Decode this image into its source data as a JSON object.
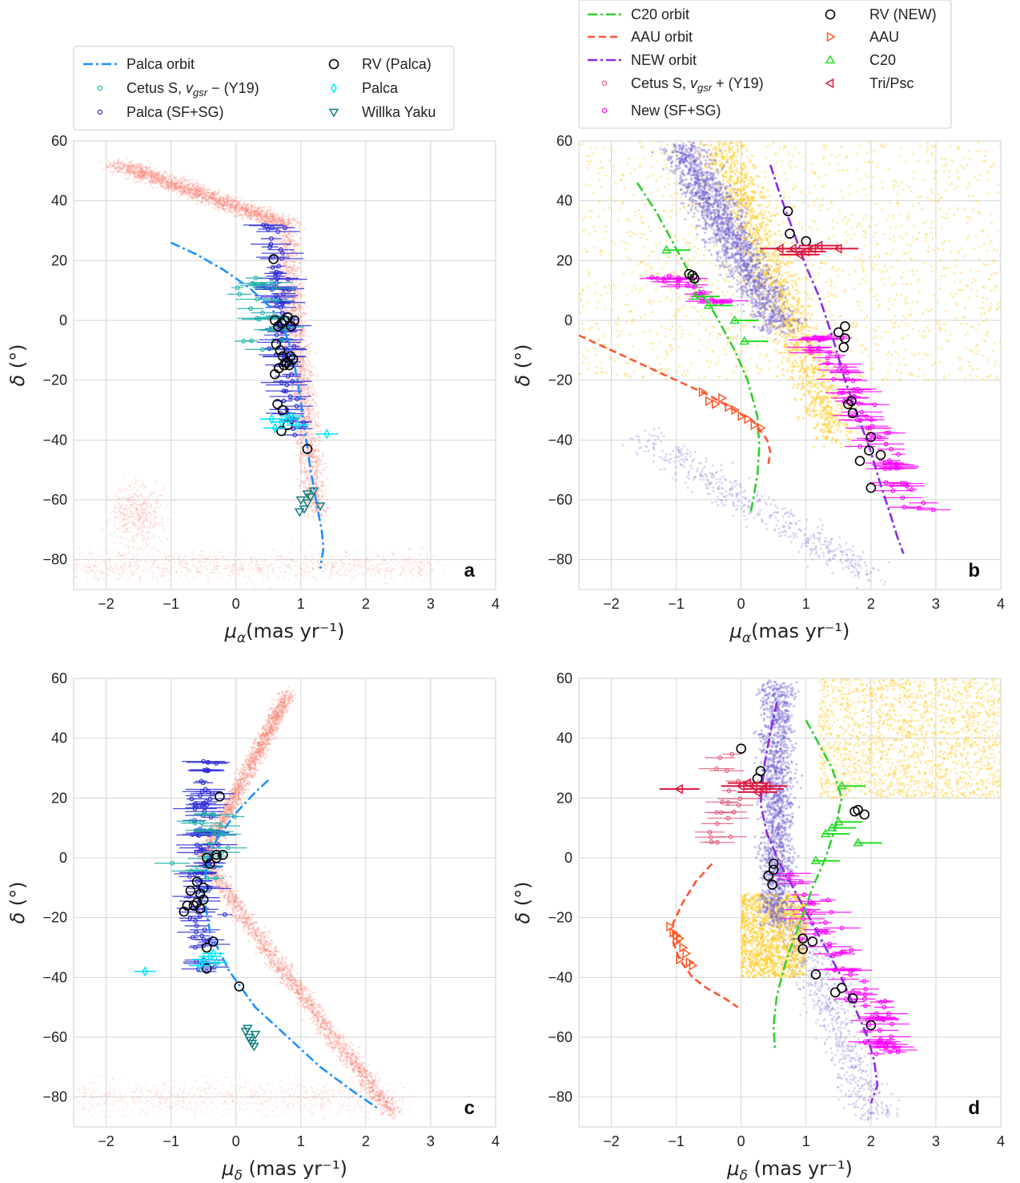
{
  "figure": {
    "panels": [
      "a",
      "b",
      "c",
      "d"
    ],
    "xlabel_top": "μα(mas yr⁻¹)",
    "xlabel_bottom": "μδ (mas yr⁻¹)",
    "ylabel": "δ (°)"
  },
  "legends": {
    "left": [
      {
        "label": "Palca orbit",
        "marker": "dashdot",
        "color": "#1e90ff"
      },
      {
        "label": "Cetus S, vgsr −  (Y19)",
        "marker": "circle-small",
        "color": "#20b2aa"
      },
      {
        "label": "Palca (SF+SG)",
        "marker": "circle-small",
        "color": "#2b2bd6"
      },
      {
        "label": "RV (Palca)",
        "marker": "circle-open",
        "color": "#000000"
      },
      {
        "label": "Palca",
        "marker": "diamond",
        "color": "#00e5ff"
      },
      {
        "label": "Willka Yaku",
        "marker": "tri-down",
        "color": "#0f7f7f"
      }
    ],
    "right": [
      {
        "label": "C20 orbit",
        "marker": "dashdot",
        "color": "#32cd32"
      },
      {
        "label": " AAU orbit",
        "marker": "dashed",
        "color": "#ff5533"
      },
      {
        "label": "NEW orbit",
        "marker": "dashdot",
        "color": "#8a2be2"
      },
      {
        "label": "Cetus S, vgsr +  (Y19)",
        "marker": "circle-small",
        "color": "#e06080"
      },
      {
        "label": "New (SF+SG)",
        "marker": "circle-small",
        "color": "#ff00ff"
      },
      {
        "label": "RV (NEW)",
        "marker": "circle-open",
        "color": "#000000"
      },
      {
        "label": "AAU",
        "marker": "tri-right",
        "color": "#ff5522"
      },
      {
        "label": "C20",
        "marker": "tri-up",
        "color": "#22dd22"
      },
      {
        "label": "Tri/Psc",
        "marker": "tri-left",
        "color": "#dc143c"
      }
    ]
  },
  "chart_data": [
    {
      "panel": "a",
      "type": "scatter",
      "xlabel": "μα(mas yr⁻¹)",
      "ylabel": "δ (°)",
      "xlim": [
        -2.5,
        4
      ],
      "ylim": [
        -90,
        60
      ],
      "xticks": [
        -2,
        -1,
        0,
        1,
        2,
        3,
        4
      ],
      "yticks": [
        -80,
        -60,
        -40,
        -20,
        0,
        20,
        40,
        60
      ],
      "grid": true,
      "series": [
        {
          "name": "Palca orbit",
          "x": [
            -1.0,
            -0.6,
            -0.2,
            0.2,
            0.5,
            0.7,
            0.85,
            0.95,
            1.05,
            1.15,
            1.25,
            1.32,
            1.35,
            1.3
          ],
          "y": [
            26,
            22,
            17,
            11,
            5,
            0,
            -10,
            -20,
            -35,
            -50,
            -62,
            -70,
            -76,
            -83
          ]
        },
        {
          "name": "RV (Palca)",
          "x": [
            0.58,
            0.6,
            0.65,
            0.7,
            0.75,
            0.8,
            0.85,
            0.9,
            0.62,
            0.68,
            0.72,
            0.78,
            0.82,
            0.88,
            0.6,
            0.66,
            0.74,
            0.84,
            0.64,
            0.72,
            0.8,
            0.7,
            1.1
          ],
          "y": [
            20.5,
            0,
            -2,
            -1,
            0,
            1,
            -2,
            0,
            -8,
            -10,
            -12,
            -14,
            -15,
            -13,
            -18,
            -16,
            -15,
            -12,
            -28,
            -30,
            -35,
            -37,
            -43
          ]
        },
        {
          "name": "Palca",
          "x": [
            0.55,
            0.7,
            0.85,
            0.95,
            1.4,
            0.6,
            0.8
          ],
          "y": [
            -33,
            -34,
            -32,
            -35,
            -38,
            -36,
            -33
          ]
        },
        {
          "name": "Willka Yaku",
          "x": [
            1.0,
            1.1,
            1.2,
            1.05,
            1.15,
            1.3,
            0.98,
            1.1
          ],
          "y": [
            -60,
            -61,
            -57,
            -63,
            -59,
            -62,
            -64,
            -58
          ]
        }
      ]
    },
    {
      "panel": "b",
      "type": "scatter",
      "xlabel": "μα(mas yr⁻¹)",
      "ylabel": "δ (°)",
      "xlim": [
        -2.5,
        4
      ],
      "ylim": [
        -90,
        60
      ],
      "xticks": [
        -2,
        -1,
        0,
        1,
        2,
        3,
        4
      ],
      "yticks": [
        -80,
        -60,
        -40,
        -20,
        0,
        20,
        40,
        60
      ],
      "grid": true,
      "series": [
        {
          "name": "C20 orbit",
          "x": [
            -1.6,
            -1.3,
            -1.0,
            -0.7,
            -0.4,
            -0.1,
            0.1,
            0.25,
            0.28,
            0.25,
            0.2,
            0.15
          ],
          "y": [
            46,
            36,
            24,
            12,
            2,
            -10,
            -20,
            -32,
            -42,
            -52,
            -58,
            -64
          ]
        },
        {
          "name": " AAU orbit",
          "x": [
            -2.5,
            -2.0,
            -1.5,
            -1.0,
            -0.5,
            -0.1,
            0.2,
            0.4,
            0.45,
            0.42
          ],
          "y": [
            -5,
            -10,
            -15,
            -20,
            -25,
            -30,
            -34,
            -40,
            -44,
            -48
          ]
        },
        {
          "name": "NEW orbit",
          "x": [
            0.45,
            0.6,
            0.8,
            1.0,
            1.2,
            1.4,
            1.6,
            1.8,
            2.0,
            2.15,
            2.3,
            2.4,
            2.5
          ],
          "y": [
            52,
            42,
            30,
            18,
            8,
            -5,
            -20,
            -32,
            -44,
            -55,
            -65,
            -72,
            -78
          ]
        },
        {
          "name": "RV (NEW)",
          "x": [
            0.72,
            0.75,
            1.0,
            -0.8,
            -0.75,
            -0.72,
            1.6,
            1.6,
            1.58,
            1.5,
            1.7,
            1.65,
            1.72,
            2.0,
            1.97,
            1.83,
            2.15,
            2.0
          ],
          "y": [
            36.5,
            29,
            26.5,
            15.5,
            15,
            14,
            -2,
            -6,
            -9,
            -4,
            -27,
            -28,
            -31,
            -39,
            -43.5,
            -47,
            -45,
            -56
          ]
        },
        {
          "name": "AAU",
          "x": [
            -0.6,
            -0.5,
            -0.3,
            -0.2,
            -0.1,
            0.0,
            0.1,
            0.2,
            -0.4,
            0.3
          ],
          "y": [
            -24,
            -27,
            -26,
            -29,
            -30,
            -32,
            -33,
            -35,
            -28,
            -36
          ]
        },
        {
          "name": "C20",
          "x": [
            -1.15,
            -0.7,
            -0.5,
            -0.1,
            0.05
          ],
          "y": [
            23.5,
            8,
            5,
            0,
            -7
          ]
        },
        {
          "name": "Tri/Psc",
          "x": [
            0.6,
            0.8,
            1.0,
            1.2,
            1.5,
            0.9,
            1.1
          ],
          "y": [
            24,
            24,
            23,
            25,
            24,
            22,
            24
          ]
        }
      ]
    },
    {
      "panel": "c",
      "type": "scatter",
      "xlabel": "μδ (mas yr⁻¹)",
      "ylabel": "δ (°)",
      "xlim": [
        -2.5,
        4
      ],
      "ylim": [
        -90,
        60
      ],
      "xticks": [
        -2,
        -1,
        0,
        1,
        2,
        3,
        4
      ],
      "yticks": [
        -80,
        -60,
        -40,
        -20,
        0,
        20,
        40,
        60
      ],
      "grid": true,
      "series": [
        {
          "name": "Palca orbit",
          "x": [
            0.5,
            0.3,
            0.0,
            -0.3,
            -0.45,
            -0.5,
            -0.4,
            -0.1,
            0.3,
            0.8,
            1.3,
            1.8,
            2.2
          ],
          "y": [
            26,
            22,
            15,
            6,
            -2,
            -12,
            -25,
            -38,
            -50,
            -60,
            -70,
            -78,
            -84
          ]
        },
        {
          "name": "RV (Palca)",
          "x": [
            -0.25,
            -0.3,
            -0.45,
            -0.4,
            -0.3,
            -0.2,
            -0.6,
            -0.5,
            -0.55,
            -0.7,
            -0.6,
            -0.5,
            -0.65,
            -0.55,
            -0.8,
            -0.75,
            -0.45,
            -0.35,
            -0.45,
            0.05
          ],
          "y": [
            20.5,
            1,
            0,
            -2,
            0,
            1,
            -8,
            -10,
            -12,
            -11,
            -15,
            -14,
            -16,
            -17,
            -18,
            -16,
            -30,
            -28,
            -37,
            -43
          ]
        },
        {
          "name": "Palca",
          "x": [
            -1.4,
            -0.5,
            -0.4,
            -0.3,
            -0.55,
            -0.35
          ],
          "y": [
            -38,
            -34,
            -33,
            -35,
            -36,
            -32
          ]
        },
        {
          "name": "Willka Yaku",
          "x": [
            0.15,
            0.2,
            0.25,
            0.3,
            0.22,
            0.28,
            0.18
          ],
          "y": [
            -58,
            -60,
            -62,
            -59,
            -61,
            -63,
            -57
          ]
        }
      ]
    },
    {
      "panel": "d",
      "type": "scatter",
      "xlabel": "μδ (mas yr⁻¹)",
      "ylabel": "δ (°)",
      "xlim": [
        -2.5,
        4
      ],
      "ylim": [
        -90,
        60
      ],
      "xticks": [
        -2,
        -1,
        0,
        1,
        2,
        3,
        4
      ],
      "yticks": [
        -80,
        -60,
        -40,
        -20,
        0,
        20,
        40,
        60
      ],
      "grid": true,
      "series": [
        {
          "name": "C20 orbit",
          "x": [
            1.0,
            1.2,
            1.4,
            1.55,
            1.45,
            1.3,
            1.1,
            0.9,
            0.7,
            0.55,
            0.5,
            0.52
          ],
          "y": [
            46,
            38,
            30,
            20,
            10,
            0,
            -10,
            -22,
            -34,
            -46,
            -56,
            -64
          ]
        },
        {
          "name": " AAU orbit",
          "x": [
            -0.45,
            -0.7,
            -0.9,
            -1.05,
            -1.05,
            -0.95,
            -0.75,
            -0.5,
            -0.25,
            -0.05
          ],
          "y": [
            -2,
            -8,
            -15,
            -22,
            -28,
            -34,
            -40,
            -44,
            -47,
            -50
          ]
        },
        {
          "name": "NEW orbit",
          "x": [
            0.55,
            0.45,
            0.35,
            0.3,
            0.4,
            0.6,
            0.9,
            1.2,
            1.5,
            1.75,
            1.95,
            2.05,
            2.1,
            2.0
          ],
          "y": [
            52,
            42,
            30,
            18,
            8,
            -2,
            -14,
            -26,
            -38,
            -50,
            -60,
            -68,
            -76,
            -82
          ]
        },
        {
          "name": "RV (NEW)",
          "x": [
            0.0,
            0.25,
            0.3,
            1.75,
            1.8,
            1.9,
            0.5,
            0.5,
            0.42,
            0.48,
            0.95,
            0.95,
            1.1,
            1.15,
            1.45,
            1.55,
            1.72,
            2.0
          ],
          "y": [
            36.5,
            26.5,
            29,
            15.5,
            16,
            14.5,
            -2,
            -4,
            -6,
            -9,
            -27,
            -30.5,
            -28,
            -39,
            -45,
            -43.5,
            -47,
            -56
          ]
        },
        {
          "name": "AAU",
          "x": [
            -1.1,
            -1.05,
            -1.0,
            -0.95,
            -0.9,
            -0.85,
            -1.0,
            -0.95,
            -0.8,
            -0.75
          ],
          "y": [
            -23,
            -25,
            -26,
            -27,
            -30,
            -32,
            -28,
            -34,
            -35,
            -36
          ]
        },
        {
          "name": "C20",
          "x": [
            1.55,
            1.5,
            1.4,
            1.3,
            1.8,
            1.15
          ],
          "y": [
            24,
            12,
            10,
            8,
            5,
            -1
          ]
        },
        {
          "name": "Tri/Psc",
          "x": [
            -0.95,
            0.0,
            0.2,
            0.35,
            0.1,
            0.25,
            0.4
          ],
          "y": [
            23,
            24,
            24,
            23,
            25,
            22,
            24
          ]
        }
      ]
    }
  ]
}
